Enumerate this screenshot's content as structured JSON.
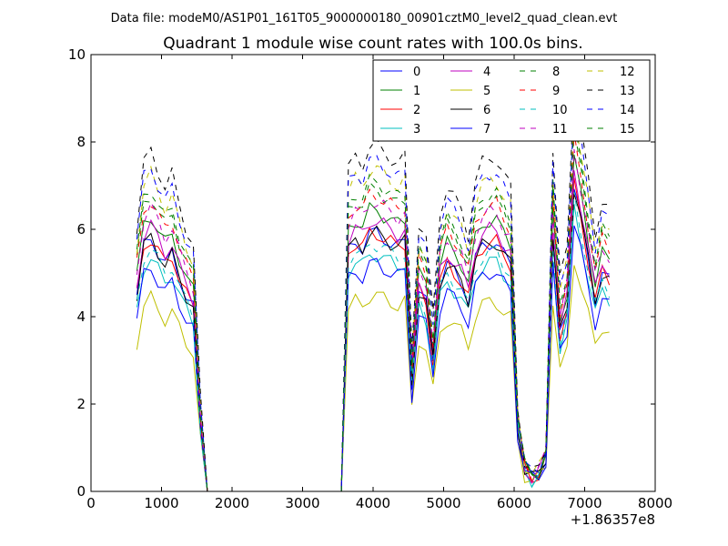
{
  "suptitle": "Data file: modeM0/AS1P01_161T05_9000000180_00901cztM0_level2_quad_clean.evt",
  "chart_data": {
    "type": "line",
    "title": "Quadrant 1 module wise count rates with 100.0s bins.",
    "xlabel": "",
    "ylabel": "",
    "x_offset_label": "+1.86357e8",
    "xlim": [
      0,
      8000
    ],
    "ylim": [
      0,
      10
    ],
    "xticks": [
      0,
      1000,
      2000,
      3000,
      4000,
      5000,
      6000,
      7000,
      8000
    ],
    "yticks": [
      0,
      2,
      4,
      6,
      8,
      10
    ],
    "grid": false,
    "legend": {
      "placement": "top-right",
      "columns": 4
    },
    "series": [
      {
        "name": "0",
        "color": "#0000ff",
        "dash": false
      },
      {
        "name": "1",
        "color": "#008000",
        "dash": false
      },
      {
        "name": "2",
        "color": "#ff0000",
        "dash": false
      },
      {
        "name": "3",
        "color": "#00bfbf",
        "dash": false
      },
      {
        "name": "4",
        "color": "#bf00bf",
        "dash": false
      },
      {
        "name": "5",
        "color": "#bfbf00",
        "dash": false
      },
      {
        "name": "6",
        "color": "#000000",
        "dash": false
      },
      {
        "name": "7",
        "color": "#0000ff",
        "dash": false
      },
      {
        "name": "8",
        "color": "#008000",
        "dash": true
      },
      {
        "name": "9",
        "color": "#ff0000",
        "dash": true
      },
      {
        "name": "10",
        "color": "#00bfbf",
        "dash": true
      },
      {
        "name": "11",
        "color": "#bf00bf",
        "dash": true
      },
      {
        "name": "12",
        "color": "#bfbf00",
        "dash": true
      },
      {
        "name": "13",
        "color": "#000000",
        "dash": true
      },
      {
        "name": "14",
        "color": "#0000ff",
        "dash": true
      },
      {
        "name": "15",
        "color": "#008000",
        "dash": true
      }
    ],
    "segments": [
      {
        "x": [
          650,
          750,
          850,
          950,
          1050,
          1150,
          1250,
          1350,
          1450,
          1550,
          1650
        ],
        "base": [
          4.5,
          5.6,
          5.8,
          5.5,
          5.2,
          5.4,
          4.9,
          4.5,
          4.2,
          1.6,
          0.0
        ]
      },
      {
        "x": [
          1650,
          3550
        ],
        "base": [
          0.0,
          0.0
        ]
      },
      {
        "x": [
          3550,
          3650,
          3750,
          3850,
          3950,
          4050,
          4150,
          4250,
          4350,
          4450,
          4550,
          4650,
          4750,
          4850,
          4950,
          5050,
          5150,
          5250,
          5350,
          5450,
          5550,
          5650,
          5750,
          5850,
          5950,
          6050,
          6150,
          6250,
          6350,
          6450,
          6550,
          6650,
          6750,
          6850,
          6950,
          7050,
          7150,
          7250,
          7350
        ],
        "base": [
          0.0,
          5.5,
          5.7,
          5.6,
          5.9,
          5.9,
          5.8,
          5.7,
          5.6,
          5.7,
          2.5,
          4.6,
          4.3,
          3.0,
          4.8,
          5.2,
          5.0,
          4.8,
          4.4,
          5.3,
          5.6,
          5.7,
          5.7,
          5.4,
          5.2,
          1.5,
          0.5,
          0.3,
          0.4,
          0.8,
          5.8,
          3.6,
          4.2,
          7.0,
          6.2,
          5.3,
          4.4,
          5.0,
          4.8
        ]
      }
    ],
    "scales": [
      1.0,
      1.09,
      1.0,
      0.92,
      1.05,
      0.76,
      1.0,
      0.88,
      1.17,
      1.15,
      0.96,
      1.12,
      1.25,
      1.34,
      1.28,
      1.2
    ]
  }
}
